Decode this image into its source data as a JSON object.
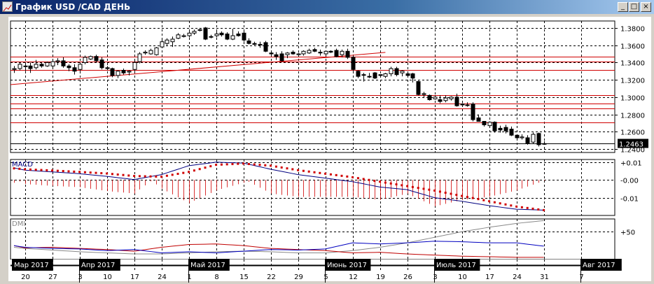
{
  "window": {
    "title": "График USD /CAD  ДЕНЬ",
    "buttons": {
      "minimize": "_",
      "maximize": "□",
      "close": "×"
    }
  },
  "colors": {
    "titlebar": "#0a246a",
    "grid": "#000000",
    "levels": "#d00000",
    "macd": "#000080",
    "signal": "#d00000",
    "dmi_plus": "#0000c0",
    "dmi_minus": "#c00000",
    "adx": "#888888"
  },
  "chart_data": [
    {
      "type": "candlestick",
      "title": "",
      "first_date": "2017-03-16",
      "price_axis": {
        "ticks": [
          "1.3800",
          "1.3600",
          "1.3400",
          "1.3200",
          "1.3000",
          "1.2800",
          "1.2600",
          "1.2400"
        ],
        "ylim": [
          1.236,
          1.388
        ]
      },
      "current_price": "1.2463",
      "horizontal_levels": [
        1.3468,
        1.3411,
        1.3314,
        1.3021,
        1.2925,
        1.2869,
        1.2707
      ],
      "trendline": {
        "start": [
          "2017-03-16",
          1.3144
        ],
        "end": [
          "2017-06-20",
          1.3517
        ]
      },
      "grid": true,
      "ohlc": [
        [
          1.332,
          1.336,
          1.328,
          1.333
        ],
        [
          1.333,
          1.34,
          1.331,
          1.338
        ],
        [
          1.336,
          1.34,
          1.33,
          1.336
        ],
        [
          1.336,
          1.34,
          1.328,
          1.333
        ],
        [
          1.334,
          1.343,
          1.332,
          1.338
        ],
        [
          1.338,
          1.34,
          1.334,
          1.336
        ],
        [
          1.336,
          1.341,
          1.335,
          1.34
        ],
        [
          1.336,
          1.344,
          1.334,
          1.341
        ],
        [
          1.341,
          1.345,
          1.337,
          1.342
        ],
        [
          1.342,
          1.346,
          1.334,
          1.336
        ],
        [
          1.336,
          1.338,
          1.33,
          1.334
        ],
        [
          1.334,
          1.338,
          1.326,
          1.33
        ],
        [
          1.332,
          1.34,
          1.33,
          1.338
        ],
        [
          1.34,
          1.348,
          1.338,
          1.346
        ],
        [
          1.344,
          1.348,
          1.343,
          1.347
        ],
        [
          1.347,
          1.349,
          1.34,
          1.342
        ],
        [
          1.343,
          1.346,
          1.332,
          1.334
        ],
        [
          1.334,
          1.336,
          1.331,
          1.333
        ],
        [
          1.333,
          1.334,
          1.323,
          1.325
        ],
        [
          1.325,
          1.331,
          1.322,
          1.33
        ],
        [
          1.331,
          1.333,
          1.326,
          1.328
        ],
        [
          1.329,
          1.331,
          1.325,
          1.33
        ],
        [
          1.332,
          1.342,
          1.33,
          1.34
        ],
        [
          1.341,
          1.352,
          1.339,
          1.35
        ],
        [
          1.351,
          1.354,
          1.349,
          1.352
        ],
        [
          1.35,
          1.356,
          1.349,
          1.354
        ],
        [
          1.349,
          1.358,
          1.348,
          1.357
        ],
        [
          1.358,
          1.368,
          1.357,
          1.364
        ],
        [
          1.362,
          1.368,
          1.36,
          1.366
        ],
        [
          1.364,
          1.37,
          1.358,
          1.367
        ],
        [
          1.368,
          1.374,
          1.367,
          1.372
        ],
        [
          1.37,
          1.373,
          1.369,
          1.371
        ],
        [
          1.371,
          1.376,
          1.369,
          1.374
        ],
        [
          1.374,
          1.378,
          1.372,
          1.376
        ],
        [
          1.377,
          1.38,
          1.376,
          1.378
        ],
        [
          1.38,
          1.381,
          1.366,
          1.367
        ],
        [
          1.37,
          1.372,
          1.368,
          1.37
        ],
        [
          1.371,
          1.376,
          1.369,
          1.373
        ],
        [
          1.374,
          1.376,
          1.37,
          1.372
        ],
        [
          1.373,
          1.375,
          1.366,
          1.367
        ],
        [
          1.367,
          1.379,
          1.366,
          1.371
        ],
        [
          1.373,
          1.376,
          1.37,
          1.371
        ],
        [
          1.374,
          1.378,
          1.364,
          1.366
        ],
        [
          1.365,
          1.368,
          1.361,
          1.362
        ],
        [
          1.362,
          1.364,
          1.36,
          1.361
        ],
        [
          1.361,
          1.364,
          1.357,
          1.361
        ],
        [
          1.363,
          1.365,
          1.352,
          1.353
        ],
        [
          1.351,
          1.352,
          1.348,
          1.35
        ],
        [
          1.349,
          1.352,
          1.343,
          1.347
        ],
        [
          1.35,
          1.353,
          1.341,
          1.342
        ],
        [
          1.349,
          1.352,
          1.345,
          1.351
        ],
        [
          1.352,
          1.354,
          1.349,
          1.35
        ],
        [
          1.349,
          1.351,
          1.347,
          1.35
        ],
        [
          1.35,
          1.354,
          1.348,
          1.353
        ],
        [
          1.351,
          1.356,
          1.35,
          1.354
        ],
        [
          1.355,
          1.357,
          1.352,
          1.353
        ],
        [
          1.352,
          1.355,
          1.348,
          1.351
        ],
        [
          1.35,
          1.354,
          1.349,
          1.353
        ],
        [
          1.353,
          1.354,
          1.351,
          1.352
        ],
        [
          1.354,
          1.356,
          1.346,
          1.347
        ],
        [
          1.349,
          1.355,
          1.346,
          1.353
        ],
        [
          1.353,
          1.356,
          1.344,
          1.346
        ],
        [
          1.346,
          1.348,
          1.33,
          1.332
        ],
        [
          1.33,
          1.331,
          1.322,
          1.324
        ],
        [
          1.326,
          1.328,
          1.318,
          1.326
        ],
        [
          1.324,
          1.328,
          1.322,
          1.324
        ],
        [
          1.328,
          1.329,
          1.321,
          1.322
        ],
        [
          1.326,
          1.326,
          1.324,
          1.325
        ],
        [
          1.324,
          1.328,
          1.322,
          1.327
        ],
        [
          1.327,
          1.335,
          1.324,
          1.333
        ],
        [
          1.333,
          1.335,
          1.324,
          1.326
        ],
        [
          1.328,
          1.331,
          1.324,
          1.33
        ],
        [
          1.327,
          1.329,
          1.323,
          1.325
        ],
        [
          1.327,
          1.328,
          1.317,
          1.322
        ],
        [
          1.318,
          1.319,
          1.302,
          1.303
        ],
        [
          1.303,
          1.306,
          1.299,
          1.304
        ],
        [
          1.302,
          1.303,
          1.296,
          1.297
        ],
        [
          1.298,
          1.302,
          1.297,
          1.3
        ],
        [
          1.297,
          1.302,
          1.293,
          1.295
        ],
        [
          1.296,
          1.302,
          1.294,
          1.299
        ],
        [
          1.298,
          1.301,
          1.296,
          1.3
        ],
        [
          1.3,
          1.304,
          1.289,
          1.29
        ],
        [
          1.292,
          1.293,
          1.29,
          1.291
        ],
        [
          1.291,
          1.294,
          1.289,
          1.291
        ],
        [
          1.292,
          1.294,
          1.272,
          1.274
        ],
        [
          1.276,
          1.28,
          1.272,
          1.272
        ],
        [
          1.272,
          1.272,
          1.266,
          1.268
        ],
        [
          1.267,
          1.272,
          1.266,
          1.271
        ],
        [
          1.271,
          1.272,
          1.259,
          1.261
        ],
        [
          1.264,
          1.267,
          1.259,
          1.262
        ],
        [
          1.265,
          1.268,
          1.258,
          1.261
        ],
        [
          1.263,
          1.266,
          1.255,
          1.256
        ],
        [
          1.256,
          1.257,
          1.251,
          1.253
        ],
        [
          1.253,
          1.257,
          1.251,
          1.254
        ],
        [
          1.253,
          1.256,
          1.245,
          1.247
        ],
        [
          1.248,
          1.259,
          1.246,
          1.257
        ],
        [
          1.258,
          1.259,
          1.243,
          1.245
        ],
        [
          1.246,
          1.249,
          1.245,
          1.2463
        ]
      ]
    },
    {
      "type": "line",
      "label": "MACD",
      "y_ticks": [
        "+0.01",
        "-0.00",
        "-0.01"
      ],
      "ylim": [
        -0.02,
        0.0115
      ],
      "points": [
        [
          "2017-03-16",
          0.0068,
          0.0065
        ],
        [
          "2017-03-20",
          0.0055,
          0.006
        ],
        [
          "2017-03-27",
          0.0045,
          0.0053
        ],
        [
          "2017-04-03",
          0.0035,
          0.0045
        ],
        [
          "2017-04-10",
          0.002,
          0.0036
        ],
        [
          "2017-04-17",
          0.0002,
          0.0022
        ],
        [
          "2017-04-24",
          0.003,
          0.0018
        ],
        [
          "2017-05-01",
          0.008,
          0.0045
        ],
        [
          "2017-05-08",
          0.01,
          0.0085
        ],
        [
          "2017-05-15",
          0.0095,
          0.0092
        ],
        [
          "2017-05-22",
          0.006,
          0.008
        ],
        [
          "2017-05-29",
          0.003,
          0.0055
        ],
        [
          "2017-06-05",
          0.001,
          0.0035
        ],
        [
          "2017-06-12",
          -0.001,
          0.0015
        ],
        [
          "2017-06-19",
          -0.004,
          -0.001
        ],
        [
          "2017-06-26",
          -0.0055,
          -0.0035
        ],
        [
          "2017-07-03",
          -0.01,
          -0.006
        ],
        [
          "2017-07-10",
          -0.012,
          -0.009
        ],
        [
          "2017-07-17",
          -0.0145,
          -0.012
        ],
        [
          "2017-07-24",
          -0.0165,
          -0.015
        ],
        [
          "2017-07-31",
          -0.017,
          -0.017
        ]
      ],
      "point_fields": [
        "date",
        "macd",
        "signal"
      ]
    },
    {
      "type": "line",
      "label": "DMI",
      "y_ticks": [
        "+50"
      ],
      "ylim": [
        0,
        73
      ],
      "points": [
        [
          "2017-03-16",
          25,
          25,
          22
        ],
        [
          "2017-03-20",
          22,
          21,
          20
        ],
        [
          "2017-03-27",
          20,
          22,
          17
        ],
        [
          "2017-04-03",
          19,
          20,
          14
        ],
        [
          "2017-04-10",
          16,
          18,
          12
        ],
        [
          "2017-04-17",
          18,
          15,
          10
        ],
        [
          "2017-04-24",
          12,
          22,
          10
        ],
        [
          "2017-05-01",
          14,
          27,
          12
        ],
        [
          "2017-05-08",
          12,
          28,
          14
        ],
        [
          "2017-05-15",
          15,
          25,
          15
        ],
        [
          "2017-05-22",
          18,
          20,
          14
        ],
        [
          "2017-05-29",
          17,
          18,
          12
        ],
        [
          "2017-06-05",
          19,
          16,
          12
        ],
        [
          "2017-06-12",
          30,
          12,
          16
        ],
        [
          "2017-06-19",
          28,
          13,
          22
        ],
        [
          "2017-06-26",
          30,
          10,
          30
        ],
        [
          "2017-07-03",
          33,
          8,
          40
        ],
        [
          "2017-07-10",
          32,
          6,
          50
        ],
        [
          "2017-07-17",
          30,
          5,
          58
        ],
        [
          "2017-07-24",
          30,
          4,
          65
        ],
        [
          "2017-07-31",
          24,
          4,
          70
        ]
      ],
      "point_fields": [
        "date",
        "plus_di",
        "minus_di",
        "adx"
      ]
    }
  ],
  "time_axis": {
    "months": [
      {
        "label": "Мар 2017",
        "date": "2017-03-16"
      },
      {
        "label": "Апр 2017",
        "date": "2017-04-03"
      },
      {
        "label": "Май 2017",
        "date": "2017-05-01"
      },
      {
        "label": "Июнь 2017",
        "date": "2017-06-05"
      },
      {
        "label": "Июль 2017",
        "date": "2017-07-03"
      },
      {
        "label": "Авг 2017",
        "date": "2017-08-07"
      }
    ],
    "days": [
      {
        "label": "20",
        "date": "2017-03-20"
      },
      {
        "label": "27",
        "date": "2017-03-27"
      },
      {
        "label": "3",
        "date": "2017-04-03"
      },
      {
        "label": "10",
        "date": "2017-04-10"
      },
      {
        "label": "17",
        "date": "2017-04-17"
      },
      {
        "label": "24",
        "date": "2017-04-24"
      },
      {
        "label": "1",
        "date": "2017-05-01"
      },
      {
        "label": "8",
        "date": "2017-05-08"
      },
      {
        "label": "15",
        "date": "2017-05-15"
      },
      {
        "label": "22",
        "date": "2017-05-22"
      },
      {
        "label": "29",
        "date": "2017-05-29"
      },
      {
        "label": "5",
        "date": "2017-06-05"
      },
      {
        "label": "12",
        "date": "2017-06-12"
      },
      {
        "label": "19",
        "date": "2017-06-19"
      },
      {
        "label": "26",
        "date": "2017-06-26"
      },
      {
        "label": "3",
        "date": "2017-07-03"
      },
      {
        "label": "10",
        "date": "2017-07-10"
      },
      {
        "label": "17",
        "date": "2017-07-17"
      },
      {
        "label": "24",
        "date": "2017-07-24"
      },
      {
        "label": "31",
        "date": "2017-07-31"
      },
      {
        "label": "7",
        "date": "2017-08-07"
      }
    ]
  }
}
